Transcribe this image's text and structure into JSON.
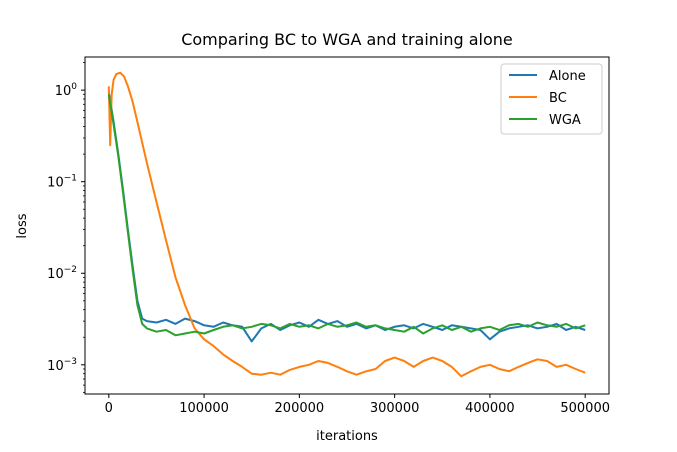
{
  "chart_data": {
    "type": "line",
    "title": "Comparing BC to WGA and training alone",
    "xlabel": "iterations",
    "ylabel": "loss",
    "xlim": [
      -25000,
      525000
    ],
    "ylim": [
      0.00048,
      2.3
    ],
    "yscale": "log",
    "grid": false,
    "legend_position": "top-right",
    "xticks": [
      0,
      100000,
      200000,
      300000,
      400000,
      500000
    ],
    "xtick_labels": [
      "0",
      "100000",
      "200000",
      "300000",
      "400000",
      "500000"
    ],
    "yticks": [
      0.001,
      0.01,
      0.1,
      1
    ],
    "ytick_labels": [
      {
        "base": "10",
        "exp": "−3"
      },
      {
        "base": "10",
        "exp": "−2"
      },
      {
        "base": "10",
        "exp": "−1"
      },
      {
        "base": "10",
        "exp": "0"
      }
    ],
    "series": [
      {
        "name": "Alone",
        "color": "#1f77b4",
        "x": [
          0,
          5000,
          10000,
          15000,
          20000,
          25000,
          30000,
          35000,
          40000,
          50000,
          60000,
          70000,
          80000,
          90000,
          100000,
          110000,
          120000,
          130000,
          140000,
          150000,
          160000,
          170000,
          180000,
          190000,
          200000,
          210000,
          220000,
          230000,
          240000,
          250000,
          260000,
          270000,
          280000,
          290000,
          300000,
          310000,
          320000,
          330000,
          340000,
          350000,
          360000,
          370000,
          380000,
          390000,
          400000,
          410000,
          420000,
          430000,
          440000,
          450000,
          460000,
          470000,
          480000,
          490000,
          500000
        ],
        "y": [
          0.95,
          0.45,
          0.2,
          0.08,
          0.03,
          0.012,
          0.005,
          0.0032,
          0.003,
          0.0029,
          0.0031,
          0.0028,
          0.0032,
          0.003,
          0.0027,
          0.0026,
          0.0029,
          0.0027,
          0.0026,
          0.0018,
          0.0025,
          0.0028,
          0.0024,
          0.0027,
          0.0029,
          0.0026,
          0.0031,
          0.0028,
          0.003,
          0.0026,
          0.0028,
          0.0025,
          0.0027,
          0.0024,
          0.0026,
          0.0027,
          0.0025,
          0.0028,
          0.0026,
          0.0024,
          0.0027,
          0.0026,
          0.0025,
          0.0024,
          0.0019,
          0.0023,
          0.0025,
          0.0026,
          0.0027,
          0.0025,
          0.0026,
          0.0028,
          0.0024,
          0.0026,
          0.0024
        ]
      },
      {
        "name": "BC",
        "color": "#ff7f0e",
        "x": [
          0,
          1500,
          3000,
          5000,
          8000,
          12000,
          16000,
          20000,
          25000,
          30000,
          40000,
          50000,
          60000,
          70000,
          80000,
          90000,
          100000,
          110000,
          120000,
          130000,
          140000,
          150000,
          160000,
          170000,
          180000,
          190000,
          200000,
          210000,
          220000,
          230000,
          240000,
          250000,
          260000,
          270000,
          280000,
          290000,
          300000,
          310000,
          320000,
          330000,
          340000,
          350000,
          360000,
          370000,
          380000,
          390000,
          400000,
          410000,
          420000,
          430000,
          440000,
          450000,
          460000,
          470000,
          480000,
          490000,
          500000
        ],
        "y": [
          1.1,
          0.25,
          0.9,
          1.3,
          1.5,
          1.55,
          1.4,
          1.1,
          0.75,
          0.45,
          0.16,
          0.06,
          0.023,
          0.009,
          0.0045,
          0.0025,
          0.0019,
          0.0016,
          0.0013,
          0.0011,
          0.00095,
          0.0008,
          0.00078,
          0.00082,
          0.00078,
          0.00088,
          0.00095,
          0.001,
          0.0011,
          0.00105,
          0.00095,
          0.00085,
          0.00078,
          0.00085,
          0.0009,
          0.0011,
          0.0012,
          0.0011,
          0.00095,
          0.0011,
          0.0012,
          0.0011,
          0.00095,
          0.00075,
          0.00085,
          0.00095,
          0.001,
          0.0009,
          0.00085,
          0.00095,
          0.00105,
          0.00115,
          0.0011,
          0.00095,
          0.001,
          0.0009,
          0.00082
        ]
      },
      {
        "name": "WGA",
        "color": "#2ca02c",
        "x": [
          0,
          5000,
          10000,
          15000,
          20000,
          25000,
          30000,
          35000,
          40000,
          50000,
          60000,
          70000,
          80000,
          90000,
          100000,
          110000,
          120000,
          130000,
          140000,
          150000,
          160000,
          170000,
          180000,
          190000,
          200000,
          210000,
          220000,
          230000,
          240000,
          250000,
          260000,
          270000,
          280000,
          290000,
          300000,
          310000,
          320000,
          330000,
          340000,
          350000,
          360000,
          370000,
          380000,
          390000,
          400000,
          410000,
          420000,
          430000,
          440000,
          450000,
          460000,
          470000,
          480000,
          490000,
          500000
        ],
        "y": [
          0.9,
          0.42,
          0.19,
          0.075,
          0.028,
          0.011,
          0.0045,
          0.0028,
          0.0025,
          0.0023,
          0.0024,
          0.0021,
          0.0022,
          0.0023,
          0.0022,
          0.0024,
          0.0026,
          0.0027,
          0.0025,
          0.0026,
          0.0028,
          0.0027,
          0.0025,
          0.0028,
          0.0026,
          0.0027,
          0.0025,
          0.0028,
          0.0026,
          0.0027,
          0.0029,
          0.0026,
          0.0027,
          0.0025,
          0.0024,
          0.0023,
          0.0026,
          0.0022,
          0.0025,
          0.0027,
          0.0024,
          0.0026,
          0.0023,
          0.0025,
          0.0026,
          0.0024,
          0.0027,
          0.0028,
          0.0026,
          0.0029,
          0.0027,
          0.0026,
          0.0028,
          0.0025,
          0.0027
        ]
      }
    ]
  }
}
